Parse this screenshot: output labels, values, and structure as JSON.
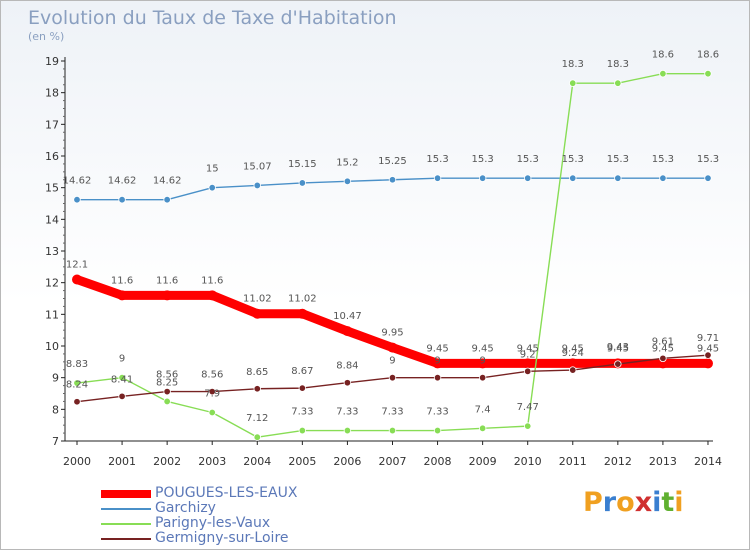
{
  "chart_data": {
    "type": "line",
    "title": "Evolution du Taux de Taxe d'Habitation",
    "subtitle": "(en %)",
    "x": [
      "2000",
      "2001",
      "2002",
      "2003",
      "2004",
      "2005",
      "2006",
      "2007",
      "2008",
      "2009",
      "2010",
      "2011",
      "2012",
      "2013",
      "2014"
    ],
    "ylim": [
      7,
      19
    ],
    "yticks": [
      "7",
      "8",
      "9",
      "10",
      "11",
      "12",
      "13",
      "14",
      "15",
      "16",
      "17",
      "18",
      "19"
    ],
    "grid": false,
    "legend_position": "bottom-left",
    "series": [
      {
        "name": "POUGUES-LES-EAUX",
        "color": "#ff0000",
        "values": [
          12.1,
          11.6,
          11.6,
          11.6,
          11.02,
          11.02,
          10.47,
          9.95,
          9.45,
          9.45,
          9.45,
          9.45,
          9.45,
          9.45,
          9.45
        ],
        "labels": [
          "12.1",
          "11.6",
          "11.6",
          "11.6",
          "11.02",
          "11.02",
          "10.47",
          "9.95",
          "9.45",
          "9.45",
          "9.45",
          "9.45",
          "9.45",
          "9.45",
          "9.45"
        ]
      },
      {
        "name": "Garchizy",
        "color": "#4a90c8",
        "values": [
          14.62,
          14.62,
          14.62,
          15,
          15.07,
          15.15,
          15.2,
          15.25,
          15.3,
          15.3,
          15.3,
          15.3,
          15.3,
          15.3,
          15.3
        ],
        "labels": [
          "14.62",
          "14.62",
          "14.62",
          "15",
          "15.07",
          "15.15",
          "15.2",
          "15.25",
          "15.3",
          "15.3",
          "15.3",
          "15.3",
          "15.3",
          "15.3",
          "15.3"
        ]
      },
      {
        "name": "Parigny-les-Vaux",
        "color": "#88dd55",
        "values": [
          8.83,
          9,
          8.25,
          7.9,
          7.12,
          7.33,
          7.33,
          7.33,
          7.33,
          7.4,
          7.47,
          18.3,
          18.3,
          18.6,
          18.6
        ],
        "labels": [
          "8.83",
          "9",
          "8.25",
          "7.9",
          "7.12",
          "7.33",
          "7.33",
          "7.33",
          "7.33",
          "7.4",
          "7.47",
          "18.3",
          "18.3",
          "18.6",
          "18.6"
        ]
      },
      {
        "name": "Germigny-sur-Loire",
        "color": "#772222",
        "values": [
          8.24,
          8.41,
          8.56,
          8.56,
          8.65,
          8.67,
          8.84,
          9,
          9,
          9,
          9.2,
          9.24,
          9.43,
          9.61,
          9.71
        ],
        "labels": [
          "8.24",
          "8.41",
          "8.56",
          "8.56",
          "8.65",
          "8.67",
          "8.84",
          "9",
          "9",
          "9",
          "9.2",
          "9.24",
          "9.43",
          "9.61",
          "9.71"
        ]
      }
    ]
  },
  "logo": {
    "letters": [
      "P",
      "r",
      "o",
      "x",
      "i",
      "t",
      "i"
    ],
    "colors": [
      "#f0a020",
      "#3a7fd0",
      "#f0a020",
      "#d03030",
      "#3a7fd0",
      "#60b030",
      "#f0a020"
    ]
  }
}
